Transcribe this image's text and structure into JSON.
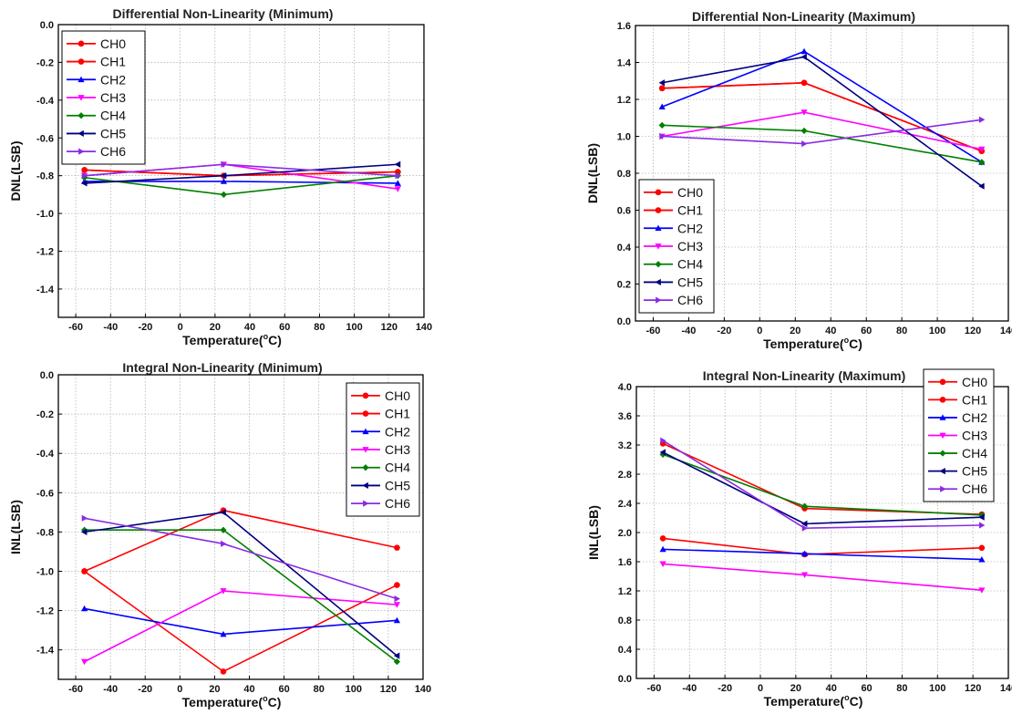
{
  "chart_data": [
    {
      "type": "line",
      "title": "Differential Non-Linearity (Minimum)",
      "xlabel": "Temperature(°C)",
      "ylabel": "DNL(LSB)",
      "x": [
        -55,
        25,
        125
      ],
      "xlim": [
        -70,
        140
      ],
      "ylim": [
        -1.55,
        0.0
      ],
      "xticks": [
        -60,
        -40,
        -20,
        0,
        20,
        40,
        60,
        80,
        100,
        120,
        140
      ],
      "yticks": [
        0.0,
        -0.2,
        -0.4,
        -0.6,
        -0.8,
        -1.0,
        -1.2,
        -1.4
      ],
      "ytick_labels": [
        "0.0",
        "-0.2",
        "-0.4",
        "-0.6",
        "-0.8",
        "-1.0",
        "-1.2",
        "-1.4"
      ],
      "grid": true,
      "legend": "top-left",
      "series": [
        {
          "name": "CH0",
          "values": [
            -0.77,
            -0.8,
            -0.78
          ]
        },
        {
          "name": "CH1",
          "values": [
            -0.77,
            -0.8,
            -0.78
          ]
        },
        {
          "name": "CH2",
          "values": [
            -0.83,
            -0.83,
            -0.84
          ]
        },
        {
          "name": "CH3",
          "values": [
            -0.8,
            -0.74,
            -0.87
          ]
        },
        {
          "name": "CH4",
          "values": [
            -0.81,
            -0.9,
            -0.8
          ]
        },
        {
          "name": "CH5",
          "values": [
            -0.84,
            -0.8,
            -0.74
          ]
        },
        {
          "name": "CH6",
          "values": [
            -0.8,
            -0.74,
            -0.8
          ]
        }
      ]
    },
    {
      "type": "line",
      "title": "Differential Non-Linearity (Maximum)",
      "xlabel": "Temperature(°C)",
      "ylabel": "DNL(LSB)",
      "x": [
        -55,
        25,
        125
      ],
      "xlim": [
        -70,
        140
      ],
      "ylim": [
        0.0,
        1.6
      ],
      "xticks": [
        -60,
        -40,
        -20,
        0,
        20,
        40,
        60,
        80,
        100,
        120,
        140
      ],
      "yticks": [
        0.0,
        0.2,
        0.4,
        0.6,
        0.8,
        1.0,
        1.2,
        1.4,
        1.6
      ],
      "ytick_labels": [
        "0.0",
        "0.2",
        "0.4",
        "0.6",
        "0.8",
        "1.0",
        "1.2",
        "1.4",
        "1.6"
      ],
      "grid": true,
      "legend": "bottom-left",
      "series": [
        {
          "name": "CH0",
          "values": [
            1.26,
            1.29,
            0.92
          ]
        },
        {
          "name": "CH1",
          "values": [
            1.26,
            1.29,
            0.92
          ]
        },
        {
          "name": "CH2",
          "values": [
            1.16,
            1.46,
            0.86
          ]
        },
        {
          "name": "CH3",
          "values": [
            1.0,
            1.13,
            0.93
          ]
        },
        {
          "name": "CH4",
          "values": [
            1.06,
            1.03,
            0.86
          ]
        },
        {
          "name": "CH5",
          "values": [
            1.29,
            1.43,
            0.73
          ]
        },
        {
          "name": "CH6",
          "values": [
            1.0,
            0.96,
            1.09
          ]
        }
      ]
    },
    {
      "type": "line",
      "title": "Integral Non-Linearity (Minimum)",
      "xlabel": "Temperature(°C)",
      "ylabel": "INL(LSB)",
      "x": [
        -55,
        25,
        125
      ],
      "xlim": [
        -70,
        140
      ],
      "ylim": [
        -1.55,
        0.0
      ],
      "xticks": [
        -60,
        -40,
        -20,
        0,
        20,
        40,
        60,
        80,
        100,
        120,
        140
      ],
      "yticks": [
        0.0,
        -0.2,
        -0.4,
        -0.6,
        -0.8,
        -1.0,
        -1.2,
        -1.4
      ],
      "ytick_labels": [
        "0.0",
        "-0.2",
        "-0.4",
        "-0.6",
        "-0.8",
        "-1.0",
        "-1.2",
        "-1.4"
      ],
      "grid": true,
      "legend": "top-right",
      "series": [
        {
          "name": "CH0",
          "values": [
            -1.0,
            -0.69,
            -0.88
          ]
        },
        {
          "name": "CH1",
          "values": [
            -1.0,
            -1.51,
            -1.07
          ]
        },
        {
          "name": "CH2",
          "values": [
            -1.19,
            -1.32,
            -1.25
          ]
        },
        {
          "name": "CH3",
          "values": [
            -1.46,
            -1.1,
            -1.17
          ]
        },
        {
          "name": "CH4",
          "values": [
            -0.79,
            -0.79,
            -1.46
          ]
        },
        {
          "name": "CH5",
          "values": [
            -0.8,
            -0.7,
            -1.43
          ]
        },
        {
          "name": "CH6",
          "values": [
            -0.73,
            -0.86,
            -1.14
          ]
        }
      ]
    },
    {
      "type": "line",
      "title": "Integral Non-Linearity (Maximum)",
      "xlabel": "Temperature(°C)",
      "ylabel": "INL(LSB)",
      "x": [
        -55,
        25,
        125
      ],
      "xlim": [
        -70,
        140
      ],
      "ylim": [
        0.0,
        4.0
      ],
      "xticks": [
        -60,
        -40,
        -20,
        0,
        20,
        40,
        60,
        80,
        100,
        120,
        140
      ],
      "yticks": [
        0.0,
        0.4,
        0.8,
        1.2,
        1.6,
        2.0,
        2.4,
        2.8,
        3.2,
        3.6,
        4.0
      ],
      "ytick_labels": [
        "0.0",
        "0.4",
        "0.8",
        "1.2",
        "1.6",
        "2.0",
        "2.4",
        "2.8",
        "3.2",
        "3.6",
        "4.0"
      ],
      "grid": true,
      "legend": "top-right",
      "series": [
        {
          "name": "CH0",
          "values": [
            1.92,
            1.7,
            1.79
          ]
        },
        {
          "name": "CH1",
          "values": [
            3.22,
            2.33,
            2.25
          ]
        },
        {
          "name": "CH2",
          "values": [
            1.77,
            1.71,
            1.63
          ]
        },
        {
          "name": "CH3",
          "values": [
            1.57,
            1.42,
            1.21
          ]
        },
        {
          "name": "CH4",
          "values": [
            3.07,
            2.36,
            2.24
          ]
        },
        {
          "name": "CH5",
          "values": [
            3.1,
            2.12,
            2.21
          ]
        },
        {
          "name": "CH6",
          "values": [
            3.26,
            2.06,
            2.1
          ]
        }
      ]
    }
  ],
  "series_styles": [
    {
      "color": "#ff0000",
      "marker": "circle"
    },
    {
      "color": "#ff0000",
      "marker": "circle"
    },
    {
      "color": "#0000ff",
      "marker": "triangle-up"
    },
    {
      "color": "#ff00ff",
      "marker": "triangle-down"
    },
    {
      "color": "#008000",
      "marker": "diamond"
    },
    {
      "color": "#000080",
      "marker": "triangle-left"
    },
    {
      "color": "#8a2be2",
      "marker": "triangle-right"
    }
  ]
}
